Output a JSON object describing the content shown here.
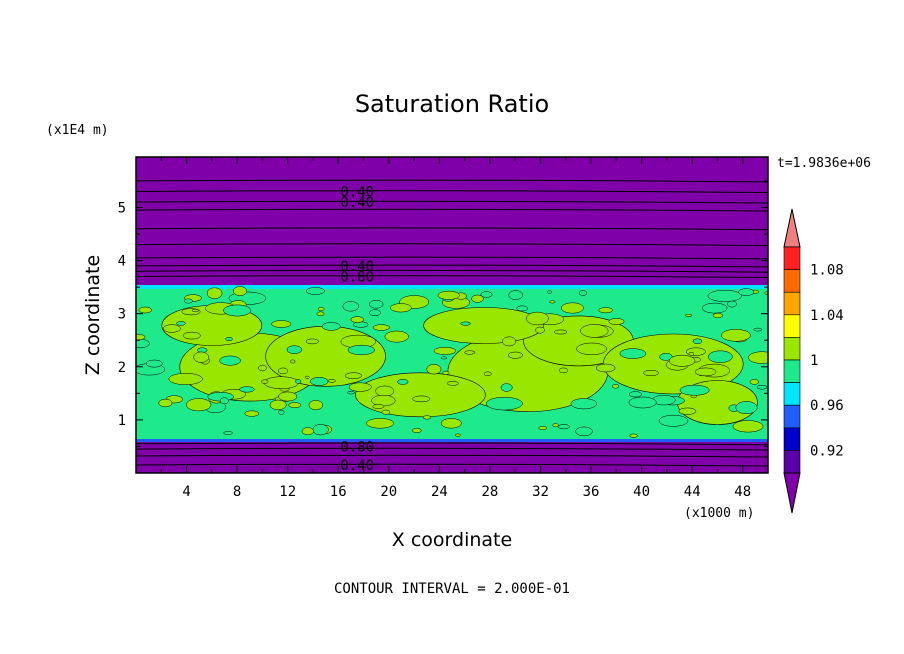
{
  "chart_data": {
    "type": "contour",
    "title": "Saturation Ratio",
    "xlabel": "X coordinate",
    "ylabel": "Z coordinate",
    "x_units": "(x1000 m)",
    "y_units": "(x1E4 m)",
    "time_label": "t=1.9836e+06",
    "footer": "CONTOUR INTERVAL = 2.000E-01",
    "xlim": [
      0,
      50
    ],
    "ylim": [
      0,
      5.95
    ],
    "x_ticks": [
      "4",
      "8",
      "12",
      "16",
      "20",
      "24",
      "28",
      "32",
      "36",
      "40",
      "44",
      "48"
    ],
    "y_ticks": [
      "1",
      "2",
      "3",
      "4",
      "5"
    ],
    "contour_labels": [
      {
        "text": "0.40",
        "x": 17.5,
        "y": 5.3
      },
      {
        "text": "0.40",
        "x": 17.5,
        "y": 5.1
      },
      {
        "text": "0.40",
        "x": 17.5,
        "y": 3.9
      },
      {
        "text": "0.80",
        "x": 17.5,
        "y": 3.7
      },
      {
        "text": "0.80",
        "x": 17.5,
        "y": 0.5
      },
      {
        "text": "0.40",
        "x": 17.5,
        "y": 0.15
      }
    ],
    "colorbar": {
      "labels": [
        "1.08",
        "1.04",
        "1",
        "0.96",
        "0.92"
      ],
      "colors": [
        "#f08080",
        "#ff2020",
        "#ff6a00",
        "#ffa500",
        "#ffff00",
        "#99e600",
        "#1eea8c",
        "#00e5ff",
        "#1f5fff",
        "#0000cc",
        "#5a00a8",
        "#7f00aa"
      ],
      "levels": [
        "> 1.10",
        "1.08 – 1.10",
        "1.06 – 1.08",
        "1.04 – 1.06",
        "1.02 – 1.04",
        "1.00 – 1.02",
        "0.98 – 1.00",
        "0.96 – 0.98",
        "0.94 – 0.96",
        "0.92 – 0.94",
        "0.90 – 0.92",
        "< 0.90"
      ]
    },
    "field": {
      "background_color": "#7f00a8",
      "cloud_band_z": [
        0.62,
        3.55
      ],
      "cloud_colors": {
        "low": "#1eea8c",
        "high": "#99e600",
        "edge": "#00e5ff"
      }
    }
  }
}
